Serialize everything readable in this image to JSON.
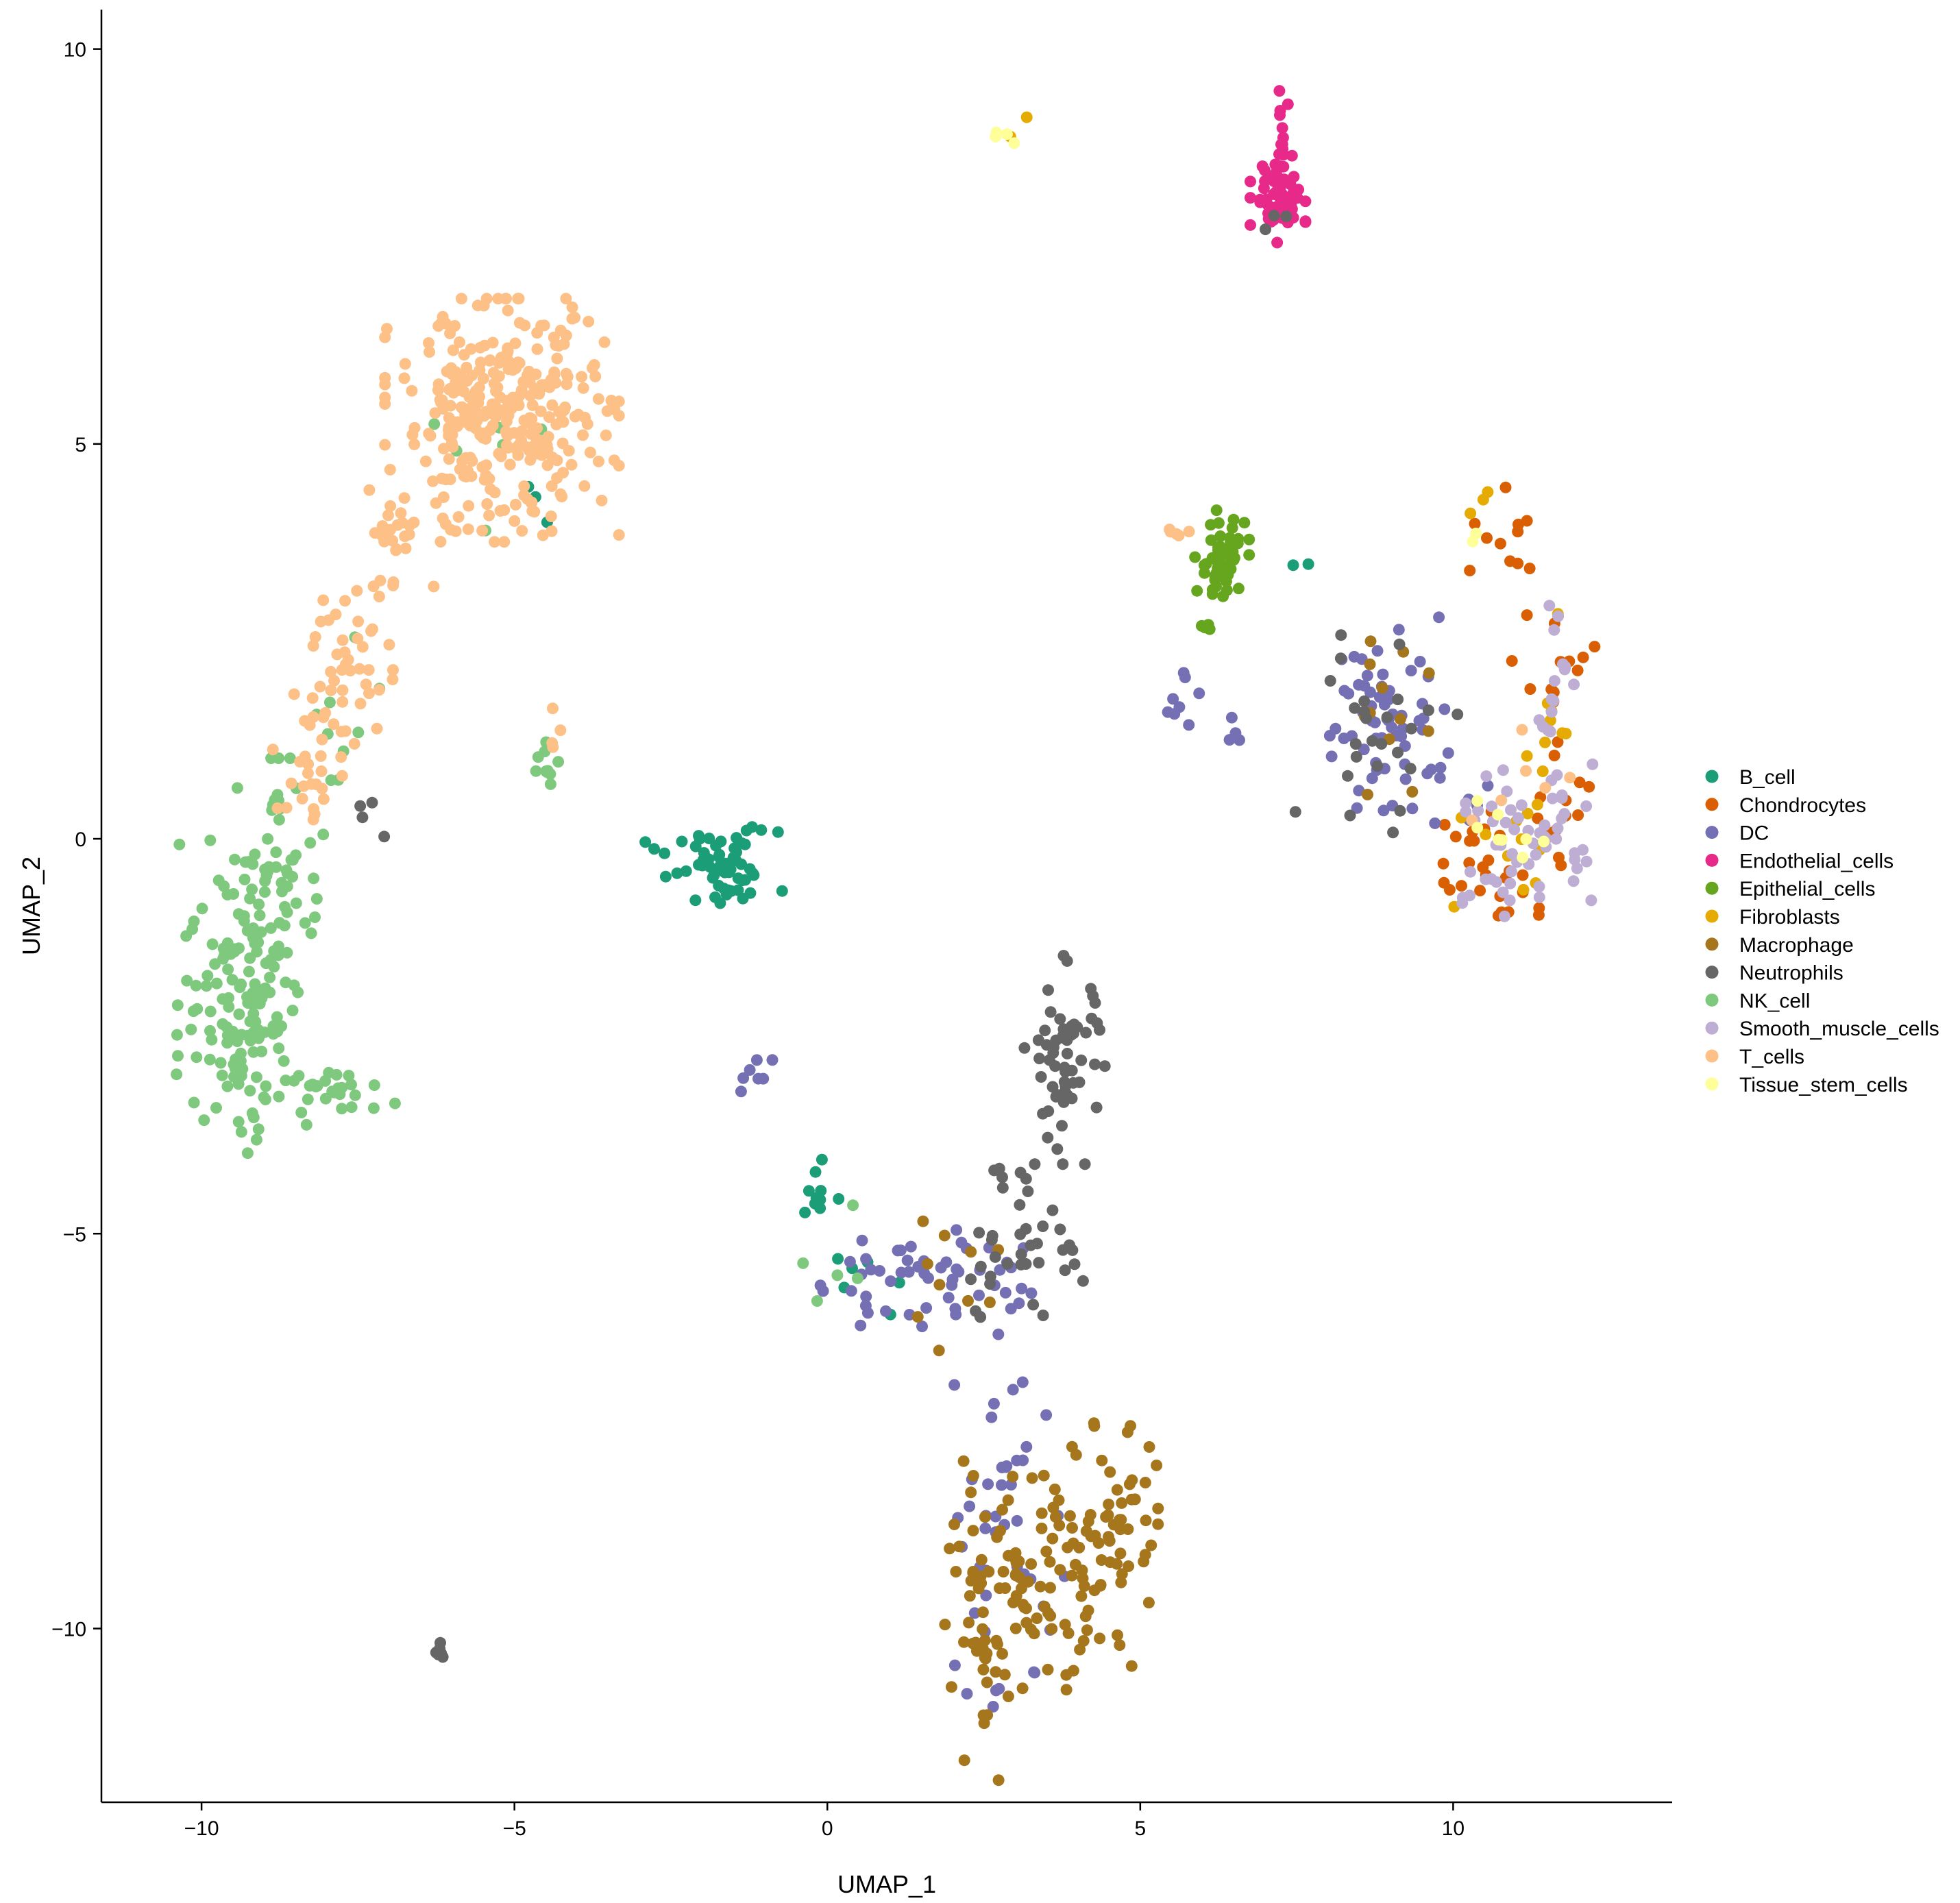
{
  "chart_data": {
    "type": "scatter",
    "title": "",
    "xlabel": "UMAP_1",
    "ylabel": "UMAP_2",
    "xlim": [
      -11.6,
      13.5
    ],
    "ylim": [
      -12.2,
      10.5
    ],
    "x_ticks": [
      -10,
      -5,
      0,
      5,
      10
    ],
    "y_ticks": [
      -10,
      -5,
      0,
      5,
      10
    ],
    "x_tick_labels": [
      "−10",
      "−5",
      "0",
      "5",
      "10"
    ],
    "y_tick_labels": [
      "−10",
      "−5",
      "0",
      "5",
      "10"
    ],
    "grid": false,
    "legend_position": "right",
    "series": [
      {
        "name": "B_cell",
        "color": "#1B9E77",
        "clusters": [
          {
            "cx": -1.6,
            "cy": -0.4,
            "sx": 0.4,
            "sy": 0.25,
            "n": 55
          },
          {
            "cx": -0.15,
            "cy": -4.4,
            "sx": 0.15,
            "sy": 0.2,
            "n": 10
          },
          {
            "cx": 0.6,
            "cy": -5.6,
            "sx": 0.25,
            "sy": 0.2,
            "n": 6
          },
          {
            "cx": -2.8,
            "cy": -0.2,
            "sx": 0.2,
            "sy": 0.15,
            "n": 5
          },
          {
            "cx": -4.5,
            "cy": 4.2,
            "sx": 0.15,
            "sy": 0.2,
            "n": 3
          },
          {
            "cx": 7.5,
            "cy": 3.5,
            "sx": 0.15,
            "sy": 0.15,
            "n": 2
          }
        ]
      },
      {
        "name": "Chondrocytes",
        "color": "#D95F02",
        "clusters": [
          {
            "cx": 10.9,
            "cy": 3.6,
            "sx": 0.3,
            "sy": 0.4,
            "n": 12
          },
          {
            "cx": 11.6,
            "cy": 1.5,
            "sx": 0.3,
            "sy": 0.8,
            "n": 15
          },
          {
            "cx": 10.8,
            "cy": -0.5,
            "sx": 0.5,
            "sy": 0.3,
            "n": 22
          },
          {
            "cx": 11.9,
            "cy": 0.3,
            "sx": 0.25,
            "sy": 0.3,
            "n": 8
          },
          {
            "cx": 10.2,
            "cy": 0.1,
            "sx": 0.3,
            "sy": 0.3,
            "n": 6
          }
        ]
      },
      {
        "name": "DC",
        "color": "#7570B3",
        "clusters": [
          {
            "cx": 9.0,
            "cy": 1.6,
            "sx": 0.55,
            "sy": 0.6,
            "n": 60
          },
          {
            "cx": 1.5,
            "cy": -5.6,
            "sx": 0.8,
            "sy": 0.35,
            "n": 55
          },
          {
            "cx": 2.8,
            "cy": -7.9,
            "sx": 0.35,
            "sy": 0.6,
            "n": 20
          },
          {
            "cx": 2.8,
            "cy": -9.6,
            "sx": 0.45,
            "sy": 0.9,
            "n": 25
          },
          {
            "cx": -1.1,
            "cy": -3.0,
            "sx": 0.2,
            "sy": 0.1,
            "n": 7
          },
          {
            "cx": 5.5,
            "cy": 1.8,
            "sx": 0.2,
            "sy": 0.2,
            "n": 8
          },
          {
            "cx": 6.5,
            "cy": 1.4,
            "sx": 0.1,
            "sy": 0.1,
            "n": 4
          },
          {
            "cx": 10.0,
            "cy": 0.5,
            "sx": 0.4,
            "sy": 0.4,
            "n": 8
          }
        ]
      },
      {
        "name": "Endothelial_cells",
        "color": "#E7298A",
        "clusters": [
          {
            "cx": 7.2,
            "cy": 8.1,
            "sx": 0.2,
            "sy": 0.25,
            "n": 65
          },
          {
            "cx": 7.25,
            "cy": 8.9,
            "sx": 0.05,
            "sy": 0.35,
            "n": 16
          }
        ]
      },
      {
        "name": "Epithelial_cells",
        "color": "#66A61E",
        "clusters": [
          {
            "cx": 6.3,
            "cy": 3.5,
            "sx": 0.2,
            "sy": 0.3,
            "n": 55
          },
          {
            "cx": 6.0,
            "cy": 2.7,
            "sx": 0.1,
            "sy": 0.2,
            "n": 6
          }
        ]
      },
      {
        "name": "Fibroblasts",
        "color": "#E6AB02",
        "clusters": [
          {
            "cx": 11.5,
            "cy": 1.2,
            "sx": 0.35,
            "sy": 0.8,
            "n": 14
          },
          {
            "cx": 10.4,
            "cy": 4.2,
            "sx": 0.1,
            "sy": 0.1,
            "n": 3
          },
          {
            "cx": 3.0,
            "cy": 9.0,
            "sx": 0.1,
            "sy": 0.1,
            "n": 2
          },
          {
            "cx": 10.5,
            "cy": -0.2,
            "sx": 0.4,
            "sy": 0.3,
            "n": 6
          }
        ]
      },
      {
        "name": "Macrophage",
        "color": "#A6761D",
        "clusters": [
          {
            "cx": 3.2,
            "cy": -9.2,
            "sx": 0.6,
            "sy": 0.6,
            "n": 70
          },
          {
            "cx": 4.6,
            "cy": -8.7,
            "sx": 0.45,
            "sy": 0.6,
            "n": 50
          },
          {
            "cx": 2.5,
            "cy": -10.6,
            "sx": 0.3,
            "sy": 0.6,
            "n": 25
          },
          {
            "cx": 3.6,
            "cy": -10.0,
            "sx": 0.6,
            "sy": 0.4,
            "n": 25
          },
          {
            "cx": 2.0,
            "cy": -5.6,
            "sx": 0.5,
            "sy": 0.4,
            "n": 10
          },
          {
            "cx": 8.8,
            "cy": 1.5,
            "sx": 0.4,
            "sy": 0.5,
            "n": 12
          }
        ]
      },
      {
        "name": "Neutrophils",
        "color": "#666666",
        "clusters": [
          {
            "cx": 3.8,
            "cy": -2.8,
            "sx": 0.3,
            "sy": 0.6,
            "n": 60
          },
          {
            "cx": 3.2,
            "cy": -4.6,
            "sx": 0.3,
            "sy": 0.3,
            "n": 12
          },
          {
            "cx": 2.8,
            "cy": -5.4,
            "sx": 0.5,
            "sy": 0.4,
            "n": 18
          },
          {
            "cx": 3.8,
            "cy": -5.3,
            "sx": 0.25,
            "sy": 0.2,
            "n": 8
          },
          {
            "cx": 8.8,
            "cy": 1.4,
            "sx": 0.6,
            "sy": 0.6,
            "n": 25
          },
          {
            "cx": -6.2,
            "cy": -10.2,
            "sx": 0.05,
            "sy": 0.1,
            "n": 6
          },
          {
            "cx": -7.3,
            "cy": 0.2,
            "sx": 0.2,
            "sy": 0.2,
            "n": 4
          },
          {
            "cx": 7.2,
            "cy": 7.8,
            "sx": 0.2,
            "sy": 0.1,
            "n": 3
          }
        ]
      },
      {
        "name": "NK_cell",
        "color": "#7FC97F",
        "clusters": [
          {
            "cx": -9.3,
            "cy": -2.0,
            "sx": 0.5,
            "sy": 0.9,
            "n": 150
          },
          {
            "cx": -8.7,
            "cy": -0.3,
            "sx": 0.35,
            "sy": 0.6,
            "n": 50
          },
          {
            "cx": -8.0,
            "cy": -3.2,
            "sx": 0.5,
            "sy": 0.15,
            "n": 25
          },
          {
            "cx": -4.5,
            "cy": 0.9,
            "sx": 0.15,
            "sy": 0.25,
            "n": 10
          },
          {
            "cx": -7.5,
            "cy": 1.5,
            "sx": 0.3,
            "sy": 0.5,
            "n": 8
          },
          {
            "cx": -5.5,
            "cy": 4.5,
            "sx": 0.6,
            "sy": 0.6,
            "n": 6
          },
          {
            "cx": 0.5,
            "cy": -5.3,
            "sx": 0.5,
            "sy": 0.3,
            "n": 5
          }
        ]
      },
      {
        "name": "Smooth_muscle_cells",
        "color": "#BEAED4",
        "clusters": [
          {
            "cx": 11.3,
            "cy": 0.1,
            "sx": 0.5,
            "sy": 0.4,
            "n": 50
          },
          {
            "cx": 11.6,
            "cy": 2.0,
            "sx": 0.15,
            "sy": 0.6,
            "n": 15
          },
          {
            "cx": 10.6,
            "cy": -0.7,
            "sx": 0.3,
            "sy": 0.15,
            "n": 10
          }
        ]
      },
      {
        "name": "T_cells",
        "color": "#FDC086",
        "clusters": [
          {
            "cx": -5.2,
            "cy": 5.3,
            "sx": 0.85,
            "sy": 0.7,
            "n": 330
          },
          {
            "cx": -6.8,
            "cy": 3.8,
            "sx": 0.4,
            "sy": 0.4,
            "n": 25
          },
          {
            "cx": -7.6,
            "cy": 2.3,
            "sx": 0.3,
            "sy": 0.5,
            "n": 40
          },
          {
            "cx": -8.2,
            "cy": 1.0,
            "sx": 0.3,
            "sy": 0.5,
            "n": 30
          },
          {
            "cx": -4.4,
            "cy": 1.3,
            "sx": 0.1,
            "sy": 0.2,
            "n": 4
          },
          {
            "cx": 5.6,
            "cy": 3.9,
            "sx": 0.1,
            "sy": 0.05,
            "n": 5
          },
          {
            "cx": 10.9,
            "cy": 0.5,
            "sx": 0.5,
            "sy": 0.4,
            "n": 6
          }
        ]
      },
      {
        "name": "Tissue_stem_cells",
        "color": "#FFFF99",
        "clusters": [
          {
            "cx": 2.9,
            "cy": 9.0,
            "sx": 0.15,
            "sy": 0.1,
            "n": 4
          },
          {
            "cx": 10.4,
            "cy": 3.9,
            "sx": 0.1,
            "sy": 0.1,
            "n": 2
          },
          {
            "cx": 10.8,
            "cy": 0.2,
            "sx": 0.3,
            "sy": 0.4,
            "n": 8
          }
        ]
      }
    ]
  }
}
